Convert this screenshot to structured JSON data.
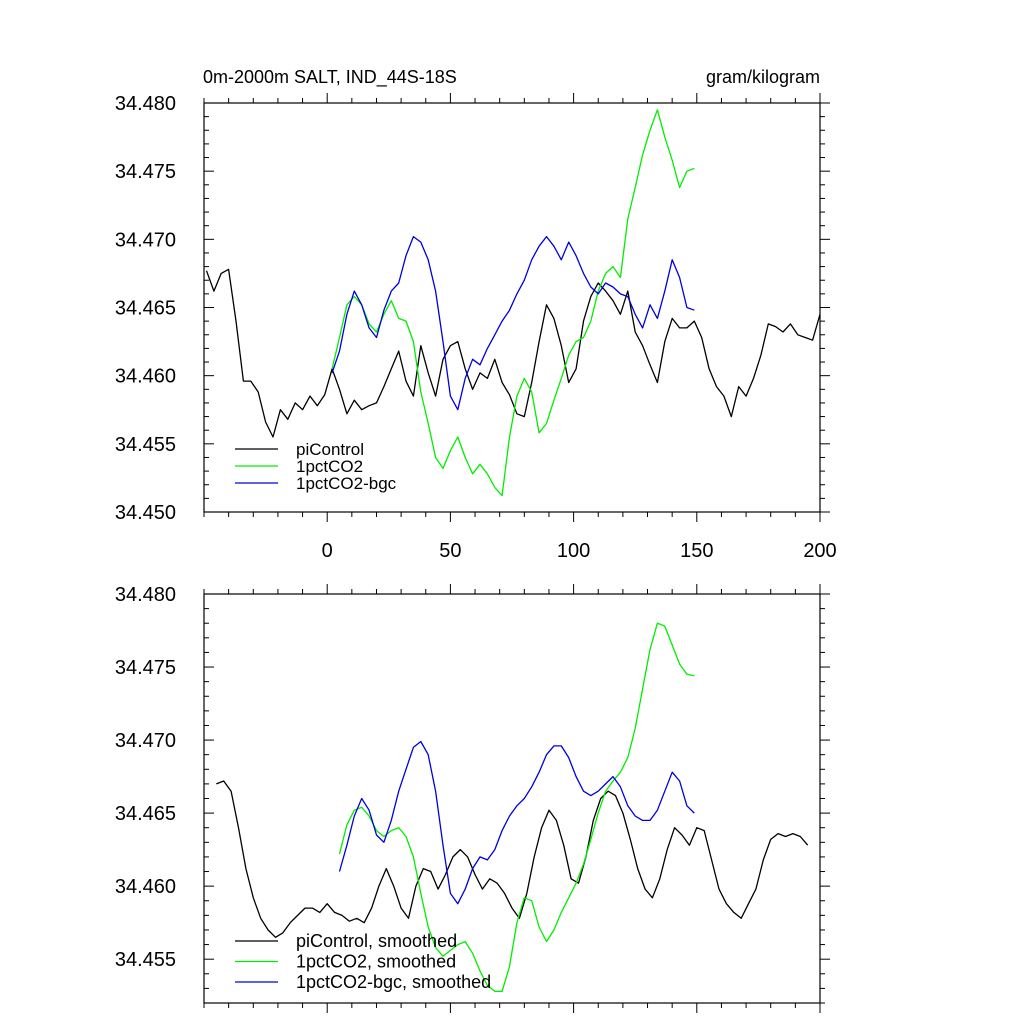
{
  "chart_data": [
    {
      "type": "line",
      "title": "0m-2000m SALT, IND_44S-18S",
      "units": "gram/kilogram",
      "xlim": [
        -50,
        200
      ],
      "ylim": [
        34.45,
        34.48
      ],
      "x_ticks": [
        0,
        50,
        100,
        150,
        200
      ],
      "x_tick_labels": [
        "0",
        "50",
        "100",
        "150",
        "200"
      ],
      "y_ticks": [
        34.45,
        34.455,
        34.46,
        34.465,
        34.47,
        34.475,
        34.48
      ],
      "y_tick_labels": [
        "34.450",
        "34.455",
        "34.460",
        "34.465",
        "34.470",
        "34.475",
        "34.480"
      ],
      "legend_position": "bottom-left",
      "series": [
        {
          "name": "piControl",
          "color": "#000000",
          "x": [
            -49,
            -46,
            -43,
            -40,
            -37,
            -34,
            -31,
            -28,
            -25,
            -22,
            -19,
            -16,
            -13,
            -10,
            -7,
            -4,
            -1,
            2,
            5,
            8,
            11,
            14,
            17,
            20,
            23,
            26,
            29,
            32,
            35,
            38,
            41,
            44,
            47,
            50,
            53,
            56,
            59,
            62,
            65,
            68,
            71,
            74,
            77,
            80,
            83,
            86,
            89,
            92,
            95,
            98,
            101,
            104,
            107,
            110,
            113,
            116,
            119,
            122,
            125,
            128,
            131,
            134,
            137,
            140,
            143,
            146,
            149,
            152,
            155,
            158,
            161,
            164,
            167,
            170,
            173,
            176,
            179,
            182,
            185,
            188,
            191,
            194,
            197,
            200
          ],
          "y": [
            34.4677,
            34.4662,
            34.4675,
            34.4678,
            34.464,
            34.4596,
            34.4596,
            34.4588,
            34.4566,
            34.4555,
            34.4575,
            34.4568,
            34.458,
            34.4575,
            34.4585,
            34.4578,
            34.4586,
            34.4605,
            34.459,
            34.4572,
            34.4582,
            34.4575,
            34.4578,
            34.458,
            34.4592,
            34.4605,
            34.4618,
            34.4596,
            34.4585,
            34.4622,
            34.4602,
            34.4585,
            34.4612,
            34.4622,
            34.4625,
            34.4605,
            34.459,
            34.4602,
            34.4598,
            34.4612,
            34.4595,
            34.4586,
            34.4572,
            34.457,
            34.4595,
            34.4625,
            34.4652,
            34.4642,
            34.4622,
            34.4595,
            34.4605,
            34.464,
            34.4658,
            34.4668,
            34.4662,
            34.4655,
            34.4645,
            34.4662,
            34.4632,
            34.4622,
            34.4608,
            34.4595,
            34.4625,
            34.4642,
            34.4635,
            34.4635,
            34.464,
            34.4628,
            34.4605,
            34.4592,
            34.4585,
            34.457,
            34.4592,
            34.4585,
            34.4598,
            34.4615,
            34.4638,
            34.4636,
            34.4632,
            34.4638,
            34.463,
            34.4628,
            34.4626,
            34.4645
          ]
        },
        {
          "name": "1pctCO2",
          "color": "#00ee00",
          "x": [
            2,
            5,
            8,
            11,
            14,
            17,
            20,
            23,
            26,
            29,
            32,
            35,
            38,
            41,
            44,
            47,
            50,
            53,
            56,
            59,
            62,
            65,
            68,
            71,
            74,
            77,
            80,
            83,
            86,
            89,
            92,
            95,
            98,
            101,
            104,
            107,
            110,
            113,
            116,
            119,
            122,
            125,
            128,
            131,
            134,
            137,
            140,
            143,
            146,
            149
          ],
          "y": [
            34.4605,
            34.4628,
            34.4652,
            34.4658,
            34.4652,
            34.4638,
            34.4632,
            34.4645,
            34.4655,
            34.4642,
            34.464,
            34.4625,
            34.4588,
            34.4565,
            34.454,
            34.4532,
            34.4545,
            34.4555,
            34.454,
            34.4528,
            34.4535,
            34.4528,
            34.4518,
            34.4512,
            34.4555,
            34.4585,
            34.4598,
            34.4588,
            34.4558,
            34.4565,
            34.4582,
            34.4598,
            34.4615,
            34.4625,
            34.4628,
            34.464,
            34.4662,
            34.4675,
            34.468,
            34.4672,
            34.4715,
            34.4738,
            34.4762,
            34.478,
            34.4795,
            34.4775,
            34.4758,
            34.4738,
            34.475,
            34.4752
          ]
        },
        {
          "name": "1pctCO2-bgc",
          "color": "#0000dd",
          "x": [
            2,
            5,
            8,
            11,
            14,
            17,
            20,
            23,
            26,
            29,
            32,
            35,
            38,
            41,
            44,
            47,
            50,
            53,
            56,
            59,
            62,
            65,
            68,
            71,
            74,
            77,
            80,
            83,
            86,
            89,
            92,
            95,
            98,
            101,
            104,
            107,
            110,
            113,
            116,
            119,
            122,
            125,
            128,
            131,
            134,
            137,
            140,
            143,
            146,
            149
          ],
          "y": [
            34.4602,
            34.4618,
            34.4645,
            34.4662,
            34.4652,
            34.4635,
            34.4628,
            34.4648,
            34.4662,
            34.4668,
            34.4688,
            34.4702,
            34.4698,
            34.4685,
            34.4662,
            34.4625,
            34.4585,
            34.4575,
            34.4598,
            34.4612,
            34.4608,
            34.462,
            34.463,
            34.464,
            34.4648,
            34.466,
            34.467,
            34.4685,
            34.4695,
            34.4702,
            34.4695,
            34.4685,
            34.4698,
            34.4688,
            34.4675,
            34.4665,
            34.466,
            34.4668,
            34.4665,
            34.466,
            34.4658,
            34.4645,
            34.4635,
            34.4652,
            34.4642,
            34.4662,
            34.4685,
            34.4672,
            34.465,
            34.4648
          ]
        }
      ]
    },
    {
      "type": "line",
      "title": "",
      "xlim": [
        -50,
        200
      ],
      "ylim": [
        34.452,
        34.48
      ],
      "x_ticks": [
        0,
        50,
        100,
        150,
        200
      ],
      "x_tick_labels": [],
      "y_ticks": [
        34.455,
        34.46,
        34.465,
        34.47,
        34.475,
        34.48
      ],
      "y_tick_labels": [
        "34.455",
        "34.460",
        "34.465",
        "34.470",
        "34.475",
        "34.480"
      ],
      "legend_position": "bottom-left",
      "series": [
        {
          "name": "piControl, smoothed",
          "color": "#000000",
          "x": [
            -45,
            -42,
            -39,
            -36,
            -33,
            -30,
            -27,
            -24,
            -21,
            -18,
            -15,
            -12,
            -9,
            -6,
            -3,
            0,
            3,
            6,
            9,
            12,
            15,
            18,
            21,
            24,
            27,
            30,
            33,
            36,
            39,
            42,
            45,
            48,
            51,
            54,
            57,
            60,
            63,
            66,
            69,
            72,
            75,
            78,
            81,
            84,
            87,
            90,
            93,
            96,
            99,
            102,
            105,
            108,
            111,
            114,
            117,
            120,
            123,
            126,
            129,
            132,
            135,
            138,
            141,
            144,
            147,
            150,
            153,
            156,
            159,
            162,
            165,
            168,
            171,
            174,
            177,
            180,
            183,
            186,
            189,
            192,
            195
          ],
          "y": [
            34.467,
            34.4672,
            34.4665,
            34.464,
            34.4612,
            34.4592,
            34.4578,
            34.457,
            34.4565,
            34.4568,
            34.4575,
            34.458,
            34.4585,
            34.4585,
            34.4582,
            34.4588,
            34.4582,
            34.458,
            34.4576,
            34.4578,
            34.4575,
            34.4585,
            34.46,
            34.4612,
            34.46,
            34.4585,
            34.4578,
            34.46,
            34.4612,
            34.461,
            34.4598,
            34.4608,
            34.462,
            34.4625,
            34.462,
            34.4608,
            34.4598,
            34.4605,
            34.4602,
            34.4595,
            34.4585,
            34.4578,
            34.4595,
            34.462,
            34.464,
            34.4652,
            34.4645,
            34.4628,
            34.4605,
            34.4602,
            34.462,
            34.4645,
            34.466,
            34.4665,
            34.4662,
            34.465,
            34.4632,
            34.4612,
            34.4598,
            34.4592,
            34.4605,
            34.4625,
            34.464,
            34.4635,
            34.4628,
            34.464,
            34.4638,
            34.4618,
            34.4598,
            34.4588,
            34.4582,
            34.4578,
            34.4588,
            34.4598,
            34.4618,
            34.4632,
            34.4636,
            34.4634,
            34.4636,
            34.4634,
            34.4628
          ]
        },
        {
          "name": "1pctCO2, smoothed",
          "color": "#00ee00",
          "x": [
            5,
            8,
            11,
            14,
            17,
            20,
            23,
            26,
            29,
            32,
            35,
            38,
            41,
            44,
            47,
            50,
            53,
            56,
            59,
            62,
            65,
            68,
            71,
            74,
            77,
            80,
            83,
            86,
            89,
            92,
            95,
            98,
            101,
            104,
            107,
            110,
            113,
            116,
            119,
            122,
            125,
            128,
            131,
            134,
            137,
            140,
            143,
            146,
            149
          ],
          "y": [
            34.4622,
            34.4642,
            34.4652,
            34.4654,
            34.4648,
            34.4638,
            34.4634,
            34.4638,
            34.464,
            34.4634,
            34.462,
            34.4595,
            34.4572,
            34.4558,
            34.4552,
            34.4556,
            34.456,
            34.4562,
            34.4554,
            34.4542,
            34.4532,
            34.4528,
            34.4528,
            34.4545,
            34.4575,
            34.4592,
            34.459,
            34.4572,
            34.4562,
            34.457,
            34.4582,
            34.4592,
            34.4602,
            34.4615,
            34.4632,
            34.465,
            34.4665,
            34.4672,
            34.4678,
            34.4688,
            34.4708,
            34.4735,
            34.4762,
            34.478,
            34.4778,
            34.4765,
            34.4752,
            34.4745,
            34.4744
          ]
        },
        {
          "name": "1pctCO2-bgc, smoothed",
          "color": "#0000dd",
          "x": [
            5,
            8,
            11,
            14,
            17,
            20,
            23,
            26,
            29,
            32,
            35,
            38,
            41,
            44,
            47,
            50,
            53,
            56,
            59,
            62,
            65,
            68,
            71,
            74,
            77,
            80,
            83,
            86,
            89,
            92,
            95,
            98,
            101,
            104,
            107,
            110,
            113,
            116,
            119,
            122,
            125,
            128,
            131,
            134,
            137,
            140,
            143,
            146,
            149
          ],
          "y": [
            34.461,
            34.4628,
            34.4648,
            34.466,
            34.4652,
            34.4635,
            34.463,
            34.4645,
            34.4665,
            34.468,
            34.4695,
            34.4699,
            34.469,
            34.4665,
            34.4628,
            34.4595,
            34.4588,
            34.4598,
            34.4612,
            34.462,
            34.4618,
            34.4625,
            34.4638,
            34.4648,
            34.4655,
            34.466,
            34.4668,
            34.4678,
            34.469,
            34.4696,
            34.4696,
            34.4688,
            34.4675,
            34.4665,
            34.4662,
            34.4665,
            34.467,
            34.4675,
            34.4668,
            34.4655,
            34.4648,
            34.4645,
            34.4645,
            34.4652,
            34.4665,
            34.4678,
            34.4672,
            34.4655,
            34.465
          ]
        }
      ]
    }
  ]
}
